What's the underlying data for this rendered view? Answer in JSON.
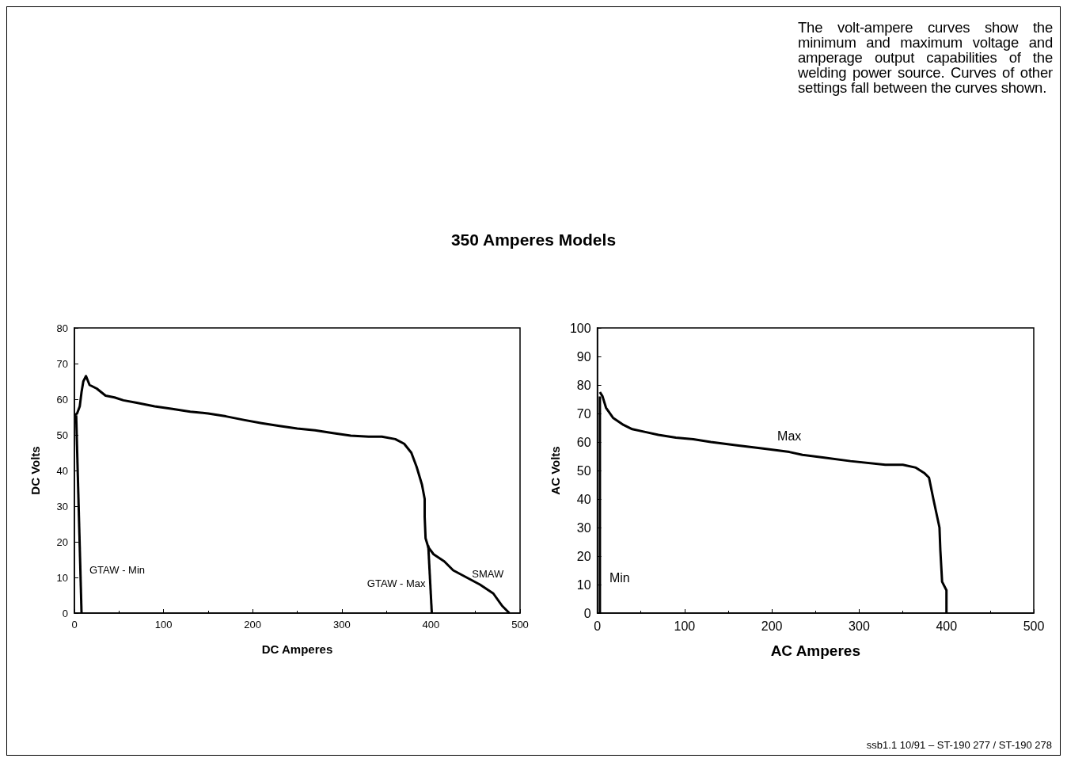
{
  "chart_data": [
    {
      "type": "line",
      "title": "350 Amperes Models",
      "xlabel": "DC Amperes",
      "ylabel": "DC Volts",
      "xlim": [
        0,
        500
      ],
      "xticks": [
        0,
        100,
        200,
        300,
        400,
        500
      ],
      "ylim": [
        0,
        80
      ],
      "yticks": [
        0,
        10,
        20,
        30,
        40,
        50,
        60,
        70,
        80
      ],
      "grid": false,
      "legend": false,
      "marker": "none",
      "line_style": "solid",
      "annotations": [
        "The volt-ampere curves show the minimum and maximum voltage and amperage output capabilities of the welding power source. Curves of other settings fall between the curves shown."
      ],
      "series": [
        {
          "name": "GTAW - Min",
          "color": "#000000",
          "x": [
            2,
            8
          ],
          "values": [
            55.5,
            0
          ]
        },
        {
          "name": "GTAW - Max",
          "color": "#000000",
          "x": [
            397,
            401
          ],
          "values": [
            19,
            0
          ]
        },
        {
          "name": "SMAW",
          "color": "#000000",
          "x": [
            0,
            3,
            6,
            8,
            10,
            13,
            17,
            25,
            35,
            45,
            55,
            70,
            90,
            110,
            130,
            150,
            170,
            190,
            210,
            230,
            250,
            270,
            290,
            310,
            330,
            345,
            360,
            370,
            378,
            384,
            390,
            393,
            393,
            394,
            397,
            403,
            415,
            425,
            440,
            455,
            470,
            480,
            488
          ],
          "values": [
            55.5,
            56,
            58,
            62,
            65,
            66.5,
            64,
            63,
            61,
            60.5,
            59.7,
            59,
            58,
            57.3,
            56.5,
            56,
            55.2,
            54.2,
            53.3,
            52.5,
            51.8,
            51.3,
            50.5,
            49.8,
            49.5,
            49.5,
            48.8,
            47.5,
            45,
            41,
            36,
            32,
            27,
            21,
            18.5,
            16.5,
            14.5,
            12,
            10,
            8,
            5.5,
            2,
            0
          ]
        }
      ]
    },
    {
      "type": "line",
      "xlabel": "AC Amperes",
      "ylabel": "AC Volts",
      "xlim": [
        0,
        500
      ],
      "xticks": [
        0,
        100,
        200,
        300,
        400,
        500
      ],
      "ylim": [
        0,
        100
      ],
      "yticks": [
        0,
        10,
        20,
        30,
        40,
        50,
        60,
        70,
        80,
        90,
        100
      ],
      "grid": false,
      "legend": false,
      "marker": "none",
      "line_style": "solid",
      "annotations": [
        "ssb1.1 10/91 – ST-190 277 / ST-190 278"
      ],
      "series": [
        {
          "name": "Min",
          "color": "#000000",
          "x": [
            3,
            3
          ],
          "values": [
            76,
            0
          ]
        },
        {
          "name": "Max",
          "color": "#000000",
          "x": [
            3,
            6,
            10,
            18,
            30,
            40,
            55,
            70,
            90,
            110,
            130,
            160,
            190,
            220,
            235,
            260,
            290,
            330,
            350,
            365,
            375,
            380,
            385,
            392,
            393,
            395,
            400,
            400
          ],
          "values": [
            77.5,
            76,
            72,
            68.5,
            66,
            64.5,
            63.5,
            62.5,
            61.5,
            61,
            60,
            58.8,
            57.7,
            56.5,
            55.5,
            54.5,
            53.3,
            52,
            52,
            51,
            49,
            47.5,
            40,
            30,
            22,
            11,
            8,
            0
          ]
        }
      ]
    }
  ]
}
